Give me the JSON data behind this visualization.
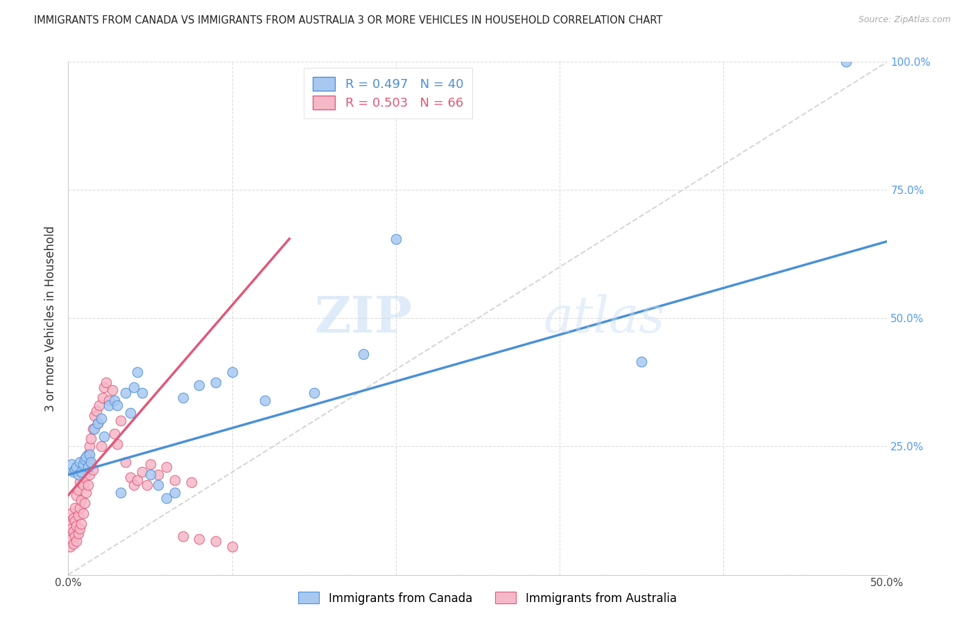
{
  "title": "IMMIGRANTS FROM CANADA VS IMMIGRANTS FROM AUSTRALIA 3 OR MORE VEHICLES IN HOUSEHOLD CORRELATION CHART",
  "source": "Source: ZipAtlas.com",
  "ylabel": "3 or more Vehicles in Household",
  "xaxis_label_canada": "Immigrants from Canada",
  "xaxis_label_australia": "Immigrants from Australia",
  "xlim": [
    0.0,
    0.5
  ],
  "ylim": [
    0.0,
    1.0
  ],
  "canada_R": 0.497,
  "canada_N": 40,
  "australia_R": 0.503,
  "australia_N": 66,
  "canada_color": "#A8C8F0",
  "australia_color": "#F5B8C8",
  "canada_line_color": "#4A90D9",
  "australia_line_color": "#E05878",
  "diagonal_color": "#CCCCCC",
  "watermark_zip": "ZIP",
  "watermark_atlas": "atlas",
  "canada_scatter_x": [
    0.002,
    0.003,
    0.004,
    0.005,
    0.006,
    0.007,
    0.008,
    0.009,
    0.01,
    0.011,
    0.012,
    0.013,
    0.014,
    0.016,
    0.018,
    0.02,
    0.022,
    0.025,
    0.028,
    0.03,
    0.032,
    0.035,
    0.038,
    0.04,
    0.042,
    0.045,
    0.05,
    0.055,
    0.06,
    0.065,
    0.07,
    0.08,
    0.09,
    0.1,
    0.12,
    0.15,
    0.18,
    0.2,
    0.35,
    0.475
  ],
  "canada_scatter_y": [
    0.215,
    0.2,
    0.205,
    0.21,
    0.195,
    0.22,
    0.2,
    0.215,
    0.225,
    0.23,
    0.21,
    0.235,
    0.22,
    0.285,
    0.295,
    0.305,
    0.27,
    0.33,
    0.34,
    0.33,
    0.16,
    0.355,
    0.315,
    0.365,
    0.395,
    0.355,
    0.195,
    0.175,
    0.15,
    0.16,
    0.345,
    0.37,
    0.375,
    0.395,
    0.34,
    0.355,
    0.43,
    0.655,
    0.415,
    1.0
  ],
  "australia_scatter_x": [
    0.001,
    0.001,
    0.002,
    0.002,
    0.002,
    0.003,
    0.003,
    0.003,
    0.004,
    0.004,
    0.004,
    0.005,
    0.005,
    0.005,
    0.006,
    0.006,
    0.006,
    0.007,
    0.007,
    0.007,
    0.008,
    0.008,
    0.008,
    0.009,
    0.009,
    0.01,
    0.01,
    0.01,
    0.011,
    0.011,
    0.012,
    0.012,
    0.013,
    0.013,
    0.014,
    0.014,
    0.015,
    0.015,
    0.016,
    0.017,
    0.018,
    0.019,
    0.02,
    0.021,
    0.022,
    0.023,
    0.025,
    0.027,
    0.028,
    0.03,
    0.032,
    0.035,
    0.038,
    0.04,
    0.042,
    0.045,
    0.048,
    0.05,
    0.055,
    0.06,
    0.065,
    0.07,
    0.075,
    0.08,
    0.09,
    0.1
  ],
  "australia_scatter_y": [
    0.055,
    0.1,
    0.07,
    0.09,
    0.12,
    0.06,
    0.085,
    0.11,
    0.075,
    0.105,
    0.13,
    0.065,
    0.095,
    0.155,
    0.08,
    0.115,
    0.165,
    0.09,
    0.13,
    0.18,
    0.1,
    0.145,
    0.2,
    0.12,
    0.175,
    0.14,
    0.19,
    0.21,
    0.16,
    0.215,
    0.175,
    0.235,
    0.195,
    0.25,
    0.215,
    0.265,
    0.205,
    0.285,
    0.31,
    0.32,
    0.295,
    0.33,
    0.25,
    0.345,
    0.365,
    0.375,
    0.34,
    0.36,
    0.275,
    0.255,
    0.3,
    0.22,
    0.19,
    0.175,
    0.185,
    0.2,
    0.175,
    0.215,
    0.195,
    0.21,
    0.185,
    0.075,
    0.18,
    0.07,
    0.065,
    0.055
  ],
  "canada_line_x": [
    0.0,
    0.5
  ],
  "canada_line_y": [
    0.195,
    0.65
  ],
  "australia_line_x": [
    0.0,
    0.135
  ],
  "australia_line_y": [
    0.155,
    0.655
  ]
}
